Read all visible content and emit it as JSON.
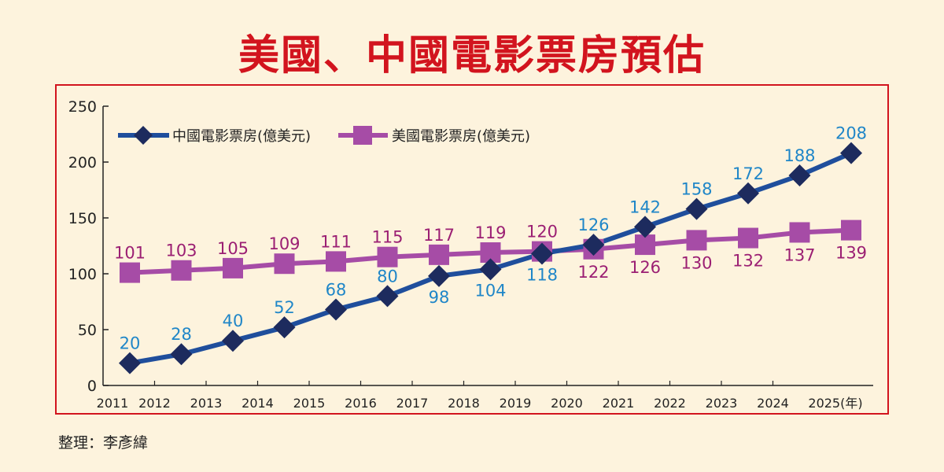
{
  "title": "美國、中國電影票房預估",
  "credit": "整理：李彥緯",
  "colors": {
    "title": "#d2141e",
    "china": "#1f4e9c",
    "china_marker": "#1d2b5e",
    "china_label": "#1f86c8",
    "us": "#a64ca6",
    "us_label": "#9b1f73"
  },
  "chart_data": {
    "type": "line",
    "title": "美國、中國電影票房預估",
    "xlabel": "",
    "ylabel": "",
    "x": [
      "2011",
      "2012",
      "2013",
      "2014",
      "2015",
      "2016",
      "2017",
      "2018",
      "2019",
      "2020",
      "2021",
      "2022",
      "2023",
      "2024",
      "2025(年)"
    ],
    "ylim": [
      0,
      250
    ],
    "yticks": [
      0,
      50,
      100,
      150,
      200,
      250
    ],
    "legend_position": "top-left",
    "series": [
      {
        "name": "中國電影票房(億美元)",
        "marker": "diamond",
        "values": [
          20,
          28,
          40,
          52,
          68,
          80,
          98,
          104,
          118,
          126,
          142,
          158,
          172,
          188,
          208
        ]
      },
      {
        "name": "美國電影票房(億美元)",
        "marker": "square",
        "values": [
          101,
          103,
          105,
          109,
          111,
          115,
          117,
          119,
          120,
          122,
          126,
          130,
          132,
          137,
          139
        ]
      }
    ]
  }
}
